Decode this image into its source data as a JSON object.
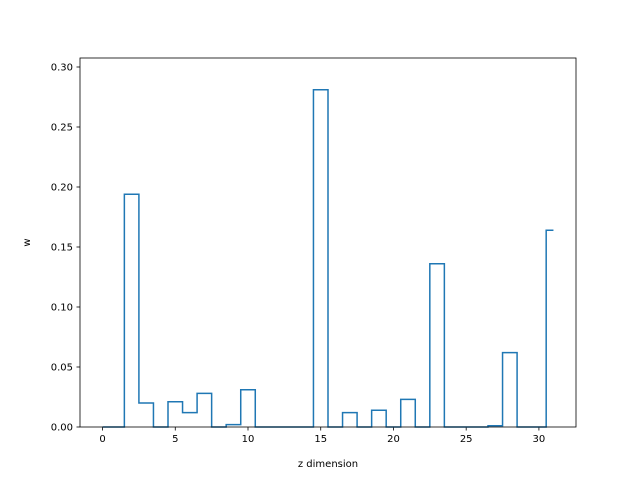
{
  "chart_data": {
    "type": "line",
    "drawstyle": "steps-mid",
    "title": "",
    "xlabel": "z dimension",
    "ylabel": "w",
    "xlim": [
      -1.55,
      32.55
    ],
    "ylim": [
      0,
      0.3075
    ],
    "x_ticks": [
      0,
      5,
      10,
      15,
      20,
      25,
      30
    ],
    "y_ticks": [
      0.0,
      0.05,
      0.1,
      0.15,
      0.2,
      0.25,
      0.3
    ],
    "grid": false,
    "legend": "none",
    "x": [
      0,
      1,
      2,
      3,
      4,
      5,
      6,
      7,
      8,
      9,
      10,
      11,
      12,
      13,
      14,
      15,
      16,
      17,
      18,
      19,
      20,
      21,
      22,
      23,
      24,
      25,
      26,
      27,
      28,
      29,
      30,
      31
    ],
    "values": [
      0.0,
      0.0,
      0.194,
      0.02,
      0.0,
      0.021,
      0.012,
      0.028,
      0.0,
      0.002,
      0.031,
      0.0,
      0.0,
      0.0,
      0.0,
      0.281,
      0.0,
      0.012,
      0.0,
      0.014,
      0.0,
      0.023,
      0.0,
      0.136,
      0.0,
      0.0,
      0.0,
      0.001,
      0.062,
      0.0,
      0.0,
      0.164
    ],
    "line_color": "#1f77b4",
    "axes_color": "#000000"
  }
}
